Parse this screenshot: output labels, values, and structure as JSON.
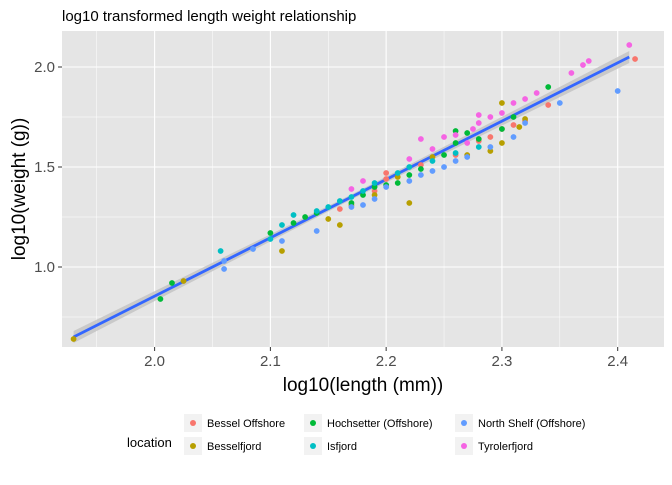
{
  "chart_data": {
    "type": "scatter",
    "title": "log10 transformed length weight relationship",
    "xlabel": "log10(length (mm))",
    "ylabel": "log10(weight (g))",
    "xlim": [
      1.92,
      2.44
    ],
    "ylim": [
      0.6,
      2.18
    ],
    "xticks": [
      2.0,
      2.1,
      2.2,
      2.3,
      2.4
    ],
    "xtick_labels": [
      "2.0",
      "2.1",
      "2.2",
      "2.3",
      "2.4"
    ],
    "yticks": [
      1.0,
      1.5,
      2.0
    ],
    "ytick_labels": [
      "1.0",
      "1.5",
      "2.0"
    ],
    "grid": true,
    "legend_placement": "bottom",
    "legend_title": "location",
    "background": "#e5e5e5",
    "fit_line": {
      "x": [
        1.93,
        2.41
      ],
      "y": [
        0.65,
        2.05
      ],
      "color": "#3366ff",
      "band": "#c4c4c4"
    },
    "series": [
      {
        "name": "Bessel Offshore",
        "color": "#f8766d",
        "points": [
          [
            2.19,
            1.38
          ],
          [
            2.2,
            1.44
          ],
          [
            2.23,
            1.51
          ],
          [
            2.26,
            1.56
          ],
          [
            2.28,
            1.63
          ],
          [
            2.29,
            1.65
          ],
          [
            2.3,
            1.69
          ],
          [
            2.31,
            1.71
          ],
          [
            2.32,
            1.73
          ],
          [
            2.34,
            1.81
          ],
          [
            2.415,
            2.04
          ],
          [
            2.2,
            1.47
          ],
          [
            2.16,
            1.29
          ]
        ]
      },
      {
        "name": "Besselfjord",
        "color": "#b79f00",
        "points": [
          [
            1.93,
            0.64
          ],
          [
            2.025,
            0.93
          ],
          [
            2.11,
            1.08
          ],
          [
            2.15,
            1.24
          ],
          [
            2.16,
            1.21
          ],
          [
            2.17,
            1.31
          ],
          [
            2.19,
            1.36
          ],
          [
            2.22,
            1.32
          ],
          [
            2.21,
            1.45
          ],
          [
            2.24,
            1.55
          ],
          [
            2.27,
            1.56
          ],
          [
            2.29,
            1.58
          ],
          [
            2.3,
            1.62
          ],
          [
            2.32,
            1.74
          ],
          [
            2.3,
            1.82
          ],
          [
            2.315,
            1.7
          ]
        ]
      },
      {
        "name": "Hochsetter (Offshore)",
        "color": "#00ba38",
        "points": [
          [
            2.005,
            0.84
          ],
          [
            2.015,
            0.92
          ],
          [
            2.1,
            1.17
          ],
          [
            2.12,
            1.22
          ],
          [
            2.13,
            1.25
          ],
          [
            2.14,
            1.27
          ],
          [
            2.17,
            1.32
          ],
          [
            2.18,
            1.36
          ],
          [
            2.2,
            1.41
          ],
          [
            2.21,
            1.42
          ],
          [
            2.22,
            1.46
          ],
          [
            2.23,
            1.49
          ],
          [
            2.25,
            1.56
          ],
          [
            2.26,
            1.62
          ],
          [
            2.27,
            1.67
          ],
          [
            2.28,
            1.64
          ],
          [
            2.3,
            1.69
          ],
          [
            2.31,
            1.75
          ],
          [
            2.34,
            1.9
          ],
          [
            2.26,
            1.68
          ],
          [
            2.19,
            1.4
          ]
        ]
      },
      {
        "name": "Isfjord",
        "color": "#00bfc4",
        "points": [
          [
            2.057,
            1.08
          ],
          [
            2.1,
            1.14
          ],
          [
            2.11,
            1.21
          ],
          [
            2.12,
            1.26
          ],
          [
            2.14,
            1.28
          ],
          [
            2.15,
            1.3
          ],
          [
            2.16,
            1.33
          ],
          [
            2.17,
            1.35
          ],
          [
            2.18,
            1.38
          ],
          [
            2.19,
            1.42
          ],
          [
            2.21,
            1.47
          ],
          [
            2.22,
            1.5
          ],
          [
            2.24,
            1.53
          ],
          [
            2.26,
            1.57
          ],
          [
            2.28,
            1.6
          ]
        ]
      },
      {
        "name": "North Shelf (Offshore)",
        "color": "#619cff",
        "points": [
          [
            2.06,
            0.99
          ],
          [
            2.06,
            1.03
          ],
          [
            2.085,
            1.09
          ],
          [
            2.11,
            1.13
          ],
          [
            2.14,
            1.18
          ],
          [
            2.17,
            1.3
          ],
          [
            2.18,
            1.31
          ],
          [
            2.2,
            1.4
          ],
          [
            2.22,
            1.43
          ],
          [
            2.23,
            1.46
          ],
          [
            2.25,
            1.5
          ],
          [
            2.26,
            1.53
          ],
          [
            2.27,
            1.55
          ],
          [
            2.29,
            1.6
          ],
          [
            2.31,
            1.65
          ],
          [
            2.32,
            1.72
          ],
          [
            2.35,
            1.82
          ],
          [
            2.4,
            1.88
          ],
          [
            2.19,
            1.34
          ],
          [
            2.24,
            1.48
          ]
        ]
      },
      {
        "name": "Tyrolerfjord",
        "color": "#f564e3",
        "points": [
          [
            2.17,
            1.39
          ],
          [
            2.18,
            1.43
          ],
          [
            2.22,
            1.54
          ],
          [
            2.23,
            1.64
          ],
          [
            2.24,
            1.59
          ],
          [
            2.25,
            1.65
          ],
          [
            2.26,
            1.66
          ],
          [
            2.27,
            1.62
          ],
          [
            2.275,
            1.69
          ],
          [
            2.28,
            1.72
          ],
          [
            2.29,
            1.75
          ],
          [
            2.3,
            1.77
          ],
          [
            2.31,
            1.82
          ],
          [
            2.32,
            1.84
          ],
          [
            2.33,
            1.87
          ],
          [
            2.36,
            1.97
          ],
          [
            2.37,
            2.01
          ],
          [
            2.375,
            2.03
          ],
          [
            2.41,
            2.11
          ],
          [
            2.28,
            1.76
          ]
        ]
      }
    ]
  }
}
